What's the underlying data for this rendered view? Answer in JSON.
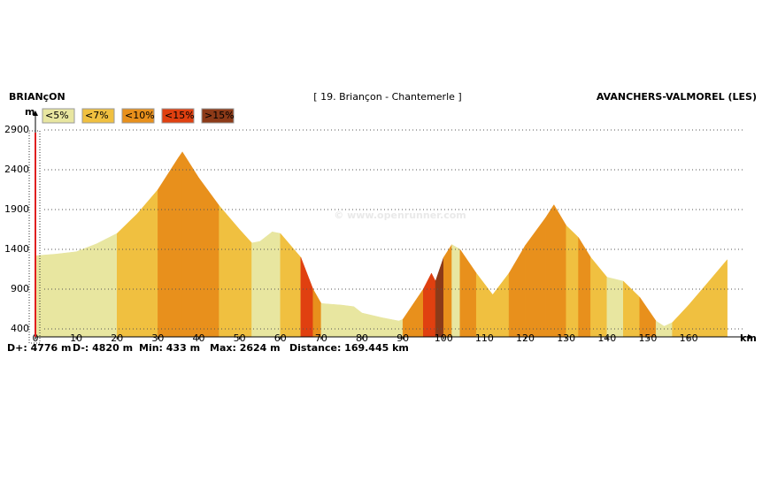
{
  "chart_data": {
    "type": "elevation-profile",
    "title_left": "BRIANçON",
    "title_center": "[ 19. Briançon - Chantemerle ]",
    "title_right": "AVANCHERS-VALMOREL (LES)",
    "watermark": "© www.openrunner.com",
    "y_unit": "m",
    "x_unit": "km",
    "stats": [
      "D+: 4776 m",
      "D-: 4820 m",
      "Min: 433 m",
      "Max: 2624 m",
      "Distance: 169.445 km"
    ],
    "slope_classes": [
      {
        "value": 5,
        "label": "<5%",
        "color": "#e8e6a0"
      },
      {
        "value": 7,
        "label": "<7%",
        "color": "#f0c040"
      },
      {
        "value": 10,
        "label": "<10%",
        "color": "#e8901c"
      },
      {
        "value": 15,
        "label": "<15%",
        "color": "#e04010"
      },
      {
        "value": 15,
        "label": ">15%",
        "color": "#8c3a18"
      }
    ],
    "x": [
      0,
      5,
      10,
      15,
      20,
      25,
      30,
      35,
      36,
      40,
      45,
      50,
      53,
      55,
      58,
      60,
      65,
      68,
      70,
      75,
      78,
      80,
      85,
      89,
      90,
      95,
      97,
      98,
      100,
      102,
      104,
      108,
      112,
      116,
      120,
      125,
      127,
      130,
      133,
      136,
      140,
      144,
      148,
      152,
      154,
      156,
      160,
      165,
      169.445
    ],
    "series": [
      {
        "name": "Altitude",
        "values": [
          1320,
          1340,
          1370,
          1470,
          1600,
          1850,
          2150,
          2550,
          2624,
          2300,
          1950,
          1650,
          1480,
          1500,
          1620,
          1600,
          1300,
          900,
          720,
          700,
          680,
          600,
          540,
          500,
          520,
          900,
          1100,
          1000,
          1300,
          1460,
          1400,
          1100,
          830,
          1100,
          1450,
          1800,
          1960,
          1700,
          1550,
          1300,
          1050,
          1000,
          800,
          500,
          433,
          480,
          700,
          1000,
          1270
        ]
      }
    ],
    "xlim": [
      0,
      175
    ],
    "ylim": [
      300,
      3000
    ],
    "xticks": [
      0,
      10,
      20,
      30,
      40,
      50,
      60,
      70,
      80,
      90,
      100,
      110,
      120,
      130,
      140,
      150,
      160
    ],
    "yticks": [
      400,
      900,
      1400,
      1900,
      2400,
      2900
    ],
    "grid": true
  }
}
